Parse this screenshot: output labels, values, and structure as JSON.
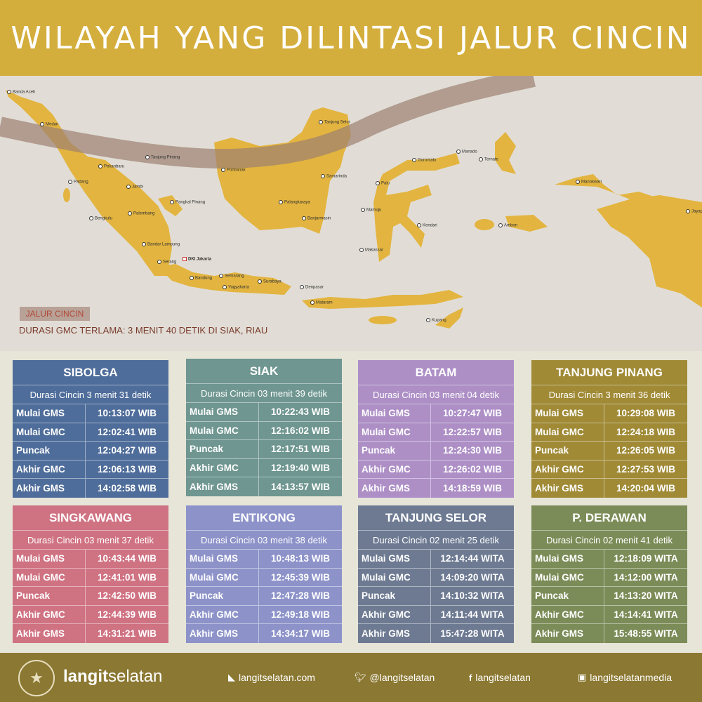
{
  "title": "WILAYAH YANG DILINTASI JALUR CINCIN",
  "colors": {
    "title_bar": "#d4ae3c",
    "land": "#e3b43f",
    "sea": "#e1ddd6",
    "ring_path": "#9c8070",
    "footer": "#8b7832"
  },
  "map": {
    "legend_label": "JALUR CINCIN",
    "durasi_note": "DURASI GMC TERLAMA: 3 MENIT 40 DETIK DI SIAK, RIAU",
    "cities": [
      "Banda Aceh",
      "Medan",
      "Tanjung Pinang",
      "Pekanbaru",
      "Padang",
      "Jambi",
      "Pangkal Pinang",
      "Palembang",
      "Bengkulu",
      "Bandar Lampung",
      "Serang",
      "DKI Jakarta",
      "Bandung",
      "Semarang",
      "Yogyakarta",
      "Surabaya",
      "Denpasar",
      "Mataram",
      "Pontianak",
      "Tanjung Selor",
      "Samarinda",
      "Palangkaraya",
      "Banjarmasin",
      "Manado",
      "Gorontalo",
      "Palu",
      "Mamuju",
      "Kendari",
      "Makassar",
      "Ternate",
      "Ambon",
      "Manokwari",
      "Jayapura",
      "Kupang"
    ]
  },
  "table_labels": [
    "Mulai GMS",
    "Mulai GMC",
    "Puncak",
    "Akhir GMC",
    "Akhir GMS"
  ],
  "cards": [
    {
      "name": "SIBOLGA",
      "durasi": "Durasi Cincin 3 menit 31 detik",
      "color": "#4f6d9a",
      "times": [
        "10:13:07 WIB",
        "12:02:41 WIB",
        "12:04:27 WIB",
        "12:06:13  WIB",
        "14:02:58 WIB"
      ]
    },
    {
      "name": "SIAK",
      "durasi": "Durasi Cincin 03 menit 39 detik",
      "color": "#6f9690",
      "times": [
        "10:22:43 WIB",
        "12:16:02 WIB",
        "12:17:51 WIB",
        "12:19:40 WIB",
        "14:13:57 WIB"
      ]
    },
    {
      "name": "BATAM",
      "durasi": "Durasi Cincin 03 menit 04 detik",
      "color": "#ad8fc6",
      "times": [
        "10:27:47 WIB",
        "12:22:57 WIB",
        "12:24:30 WIB",
        "12:26:02 WIB",
        "14:18:59 WIB"
      ]
    },
    {
      "name": "TANJUNG PINANG",
      "durasi": "Durasi Cincin 3 menit 36 detik",
      "color": "#a08a36",
      "times": [
        "10:29:08 WIB",
        "12:24:18 WIB",
        "12:26:05 WIB",
        "12:27:53 WIB",
        "14:20:04 WIB"
      ]
    },
    {
      "name": "SINGKAWANG",
      "durasi": "Durasi Cincin 03 menit 37 detik",
      "color": "#cf7282",
      "times": [
        "10:43:44 WIB",
        "12:41:01 WIB",
        "12:42:50 WIB",
        "12:44:39 WIB",
        "14:31:21 WIB"
      ]
    },
    {
      "name": "ENTIKONG",
      "durasi": "Durasi Cincin 03 menit 38 detik",
      "color": "#8d93c9",
      "times": [
        "10:48:13 WIB",
        "12:45:39 WIB",
        "12:47:28 WIB",
        "12:49:18 WIB",
        "14:34:17 WIB"
      ]
    },
    {
      "name": "TANJUNG SELOR",
      "durasi": "Durasi Cincin 02 menit 25 detik",
      "color": "#6d7a92",
      "times": [
        "12:14:44 WITA",
        "14:09:20 WITA",
        "14:10:32 WITA",
        "14:11:44 WITA",
        "15:47:28 WITA"
      ]
    },
    {
      "name": "P. DERAWAN",
      "durasi": "Durasi Cincin 02 menit 41 detik",
      "color": "#7c8c58",
      "times": [
        "12:18:09 WITA",
        "14:12:00 WITA",
        "14:13:20 WITA",
        "14:14:41 WITA",
        "15:48:55 WITA"
      ]
    }
  ],
  "footer": {
    "brand_bold": "langit",
    "brand_light": "selatan",
    "logo_text": "LANGITSELATAN",
    "website": "langitselatan.com",
    "twitter": "@langitselatan",
    "facebook": "langitselatan",
    "instagram": "langitselatanmedia",
    "icons": [
      "rss-icon",
      "twitter-icon",
      "facebook-icon",
      "instagram-icon"
    ]
  }
}
